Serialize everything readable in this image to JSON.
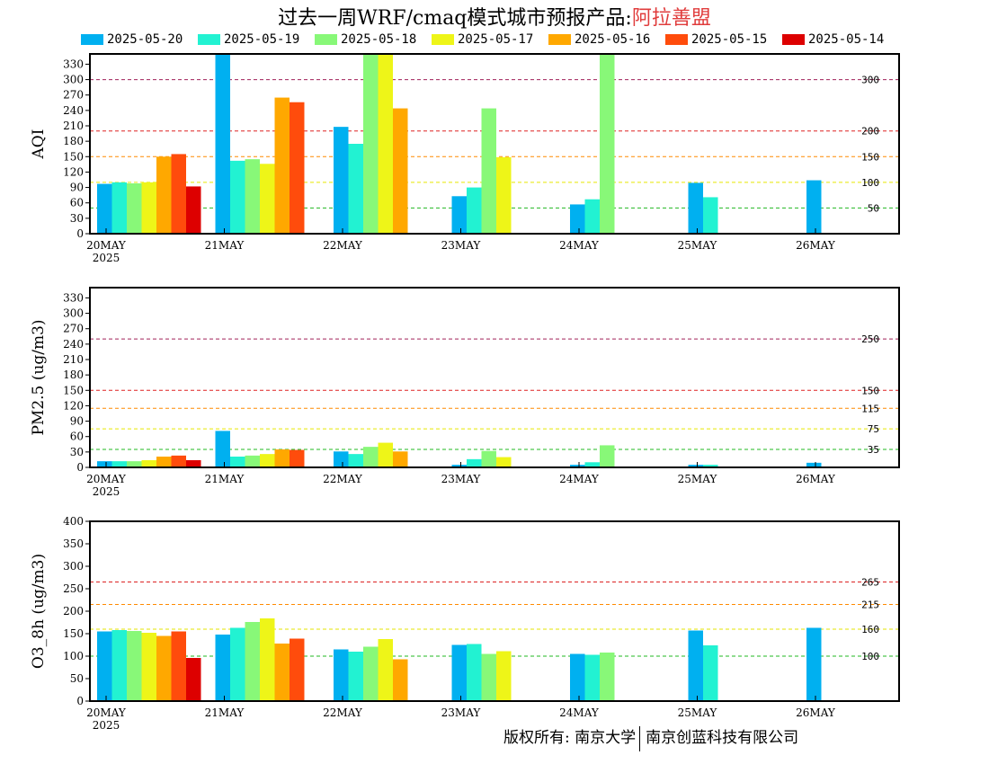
{
  "header": {
    "title_prefix": "过去一周WRF/cmaq模式城市预报产品:",
    "title_location": "阿拉善盟"
  },
  "legend": {
    "items": [
      {
        "label": "2025-05-20",
        "color": "#00b0f0"
      },
      {
        "label": "2025-05-19",
        "color": "#22f2d2"
      },
      {
        "label": "2025-05-18",
        "color": "#88f878"
      },
      {
        "label": "2025-05-17",
        "color": "#eef518"
      },
      {
        "label": "2025-05-16",
        "color": "#ffa800"
      },
      {
        "label": "2025-05-15",
        "color": "#ff4c0c"
      },
      {
        "label": "2025-05-14",
        "color": "#dd0000"
      }
    ]
  },
  "footer": {
    "copyright": "版权所有: 南京大学",
    "company": "南京创蓝科技有限公司"
  },
  "chart_data": [
    {
      "type": "bar",
      "ylabel": "AQI",
      "ylim": [
        0,
        350
      ],
      "yticks": [
        0,
        30,
        60,
        90,
        120,
        150,
        180,
        210,
        240,
        270,
        300,
        330
      ],
      "categories": [
        "20MAY",
        "21MAY",
        "22MAY",
        "23MAY",
        "24MAY",
        "25MAY",
        "26MAY"
      ],
      "year_label": "2025",
      "grid": false,
      "thresholds": [
        {
          "value": 300,
          "label": "300",
          "color": "#a0205a"
        },
        {
          "value": 200,
          "label": "200",
          "color": "#dd2222"
        },
        {
          "value": 150,
          "label": "150",
          "color": "#ff8a00"
        },
        {
          "value": 100,
          "label": "100",
          "color": "#e6e600"
        },
        {
          "value": 50,
          "label": "50",
          "color": "#22b822"
        }
      ],
      "series": [
        {
          "name": "2025-05-20",
          "values": [
            97,
            350,
            208,
            73,
            57,
            99,
            104
          ]
        },
        {
          "name": "2025-05-19",
          "values": [
            100,
            142,
            175,
            90,
            67,
            71,
            null
          ]
        },
        {
          "name": "2025-05-18",
          "values": [
            98,
            145,
            350,
            244,
            350,
            null,
            null
          ]
        },
        {
          "name": "2025-05-17",
          "values": [
            100,
            136,
            350,
            149,
            null,
            null,
            null
          ]
        },
        {
          "name": "2025-05-16",
          "values": [
            150,
            265,
            244,
            null,
            null,
            null,
            null
          ]
        },
        {
          "name": "2025-05-15",
          "values": [
            155,
            256,
            null,
            null,
            null,
            null,
            null
          ]
        },
        {
          "name": "2025-05-14",
          "values": [
            92,
            null,
            null,
            null,
            null,
            null,
            null
          ]
        }
      ]
    },
    {
      "type": "bar",
      "ylabel": "PM2.5 (ug/m3)",
      "ylim": [
        0,
        350
      ],
      "yticks": [
        0,
        30,
        60,
        90,
        120,
        150,
        180,
        210,
        240,
        270,
        300,
        330
      ],
      "categories": [
        "20MAY",
        "21MAY",
        "22MAY",
        "23MAY",
        "24MAY",
        "25MAY",
        "26MAY"
      ],
      "year_label": "2025",
      "grid": false,
      "thresholds": [
        {
          "value": 250,
          "label": "250",
          "color": "#a0205a"
        },
        {
          "value": 150,
          "label": "150",
          "color": "#dd2222"
        },
        {
          "value": 115,
          "label": "115",
          "color": "#ff8a00"
        },
        {
          "value": 75,
          "label": "75",
          "color": "#e6e600"
        },
        {
          "value": 35,
          "label": "35",
          "color": "#22b822"
        }
      ],
      "series": [
        {
          "name": "2025-05-20",
          "values": [
            12,
            71,
            31,
            5,
            5,
            5,
            9
          ]
        },
        {
          "name": "2025-05-19",
          "values": [
            12,
            21,
            26,
            16,
            10,
            5,
            null
          ]
        },
        {
          "name": "2025-05-18",
          "values": [
            12,
            23,
            40,
            32,
            43,
            null,
            null
          ]
        },
        {
          "name": "2025-05-17",
          "values": [
            14,
            26,
            48,
            20,
            null,
            null,
            null
          ]
        },
        {
          "name": "2025-05-16",
          "values": [
            21,
            35,
            31,
            null,
            null,
            null,
            null
          ]
        },
        {
          "name": "2025-05-15",
          "values": [
            23,
            34,
            null,
            null,
            null,
            null,
            null
          ]
        },
        {
          "name": "2025-05-14",
          "values": [
            14,
            null,
            null,
            null,
            null,
            null,
            null
          ]
        }
      ]
    },
    {
      "type": "bar",
      "ylabel": "O3_8h (ug/m3)",
      "ylim": [
        0,
        400
      ],
      "yticks": [
        0,
        50,
        100,
        150,
        200,
        250,
        300,
        350,
        400
      ],
      "categories": [
        "20MAY",
        "21MAY",
        "22MAY",
        "23MAY",
        "24MAY",
        "25MAY",
        "26MAY"
      ],
      "year_label": "2025",
      "grid": false,
      "thresholds": [
        {
          "value": 265,
          "label": "265",
          "color": "#dd2222"
        },
        {
          "value": 215,
          "label": "215",
          "color": "#ff8a00"
        },
        {
          "value": 160,
          "label": "160",
          "color": "#e6e600"
        },
        {
          "value": 100,
          "label": "100",
          "color": "#22b822"
        }
      ],
      "series": [
        {
          "name": "2025-05-20",
          "values": [
            155,
            148,
            115,
            125,
            105,
            157,
            163
          ]
        },
        {
          "name": "2025-05-19",
          "values": [
            158,
            163,
            110,
            127,
            103,
            124,
            null
          ]
        },
        {
          "name": "2025-05-18",
          "values": [
            156,
            176,
            121,
            105,
            108,
            null,
            null
          ]
        },
        {
          "name": "2025-05-17",
          "values": [
            152,
            184,
            138,
            111,
            null,
            null,
            null
          ]
        },
        {
          "name": "2025-05-16",
          "values": [
            145,
            128,
            93,
            null,
            null,
            null,
            null
          ]
        },
        {
          "name": "2025-05-15",
          "values": [
            155,
            139,
            null,
            null,
            null,
            null,
            null
          ]
        },
        {
          "name": "2025-05-14",
          "values": [
            96,
            null,
            null,
            null,
            null,
            null,
            null
          ]
        }
      ]
    }
  ]
}
